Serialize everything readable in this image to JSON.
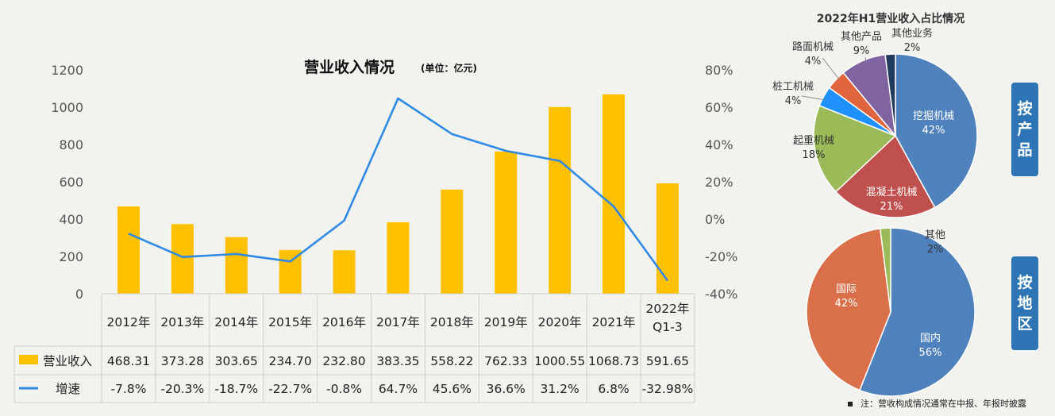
{
  "chart_data": [
    {
      "type": "bar",
      "title": "营业收入情况",
      "unit_note": "(单位：亿元)",
      "categories": [
        "2012年",
        "2013年",
        "2014年",
        "2015年",
        "2016年",
        "2017年",
        "2018年",
        "2019年",
        "2020年",
        "2021年",
        "2022年 Q1-3"
      ],
      "category_lines": [
        [
          "2012年"
        ],
        [
          "2013年"
        ],
        [
          "2014年"
        ],
        [
          "2015年"
        ],
        [
          "2016年"
        ],
        [
          "2017年"
        ],
        [
          "2018年"
        ],
        [
          "2019年"
        ],
        [
          "2020年"
        ],
        [
          "2021年"
        ],
        [
          "2022年",
          "Q1-3"
        ]
      ],
      "series": [
        {
          "name": "营业收入",
          "kind": "bar",
          "axis": "left",
          "color": "#ffc000",
          "values": [
            468.31,
            373.28,
            303.65,
            234.7,
            232.8,
            383.35,
            558.22,
            762.33,
            1000.55,
            1068.73,
            591.65
          ],
          "labels": [
            "468.31",
            "373.28",
            "303.65",
            "234.70",
            "232.80",
            "383.35",
            "558.22",
            "762.33",
            "1000.55",
            "1068.73",
            "591.65"
          ]
        },
        {
          "name": "增速",
          "kind": "line",
          "axis": "right",
          "color": "#2f8ae6",
          "values": [
            -7.8,
            -20.3,
            -18.7,
            -22.7,
            -0.8,
            64.7,
            45.6,
            36.6,
            31.2,
            6.8,
            -32.98
          ],
          "labels": [
            "-7.8%",
            "-20.3%",
            "-18.7%",
            "-22.7%",
            "-0.8%",
            "64.7%",
            "45.6%",
            "36.6%",
            "31.2%",
            "6.8%",
            "-32.98%"
          ]
        }
      ],
      "ylim": [
        0,
        1200
      ],
      "yticks": [
        0,
        200,
        400,
        600,
        800,
        1000,
        1200
      ],
      "y2lim": [
        -40,
        80
      ],
      "y2ticks": [
        "-40%",
        "-20%",
        "0%",
        "20%",
        "40%",
        "60%",
        "80%"
      ],
      "grid": false,
      "legend": "table-bottom"
    },
    {
      "type": "pie",
      "title": "2022年H1营业收入占比情况",
      "slices": [
        {
          "label": "挖掘机械",
          "pct": "42%",
          "value": 42,
          "color": "#4f81bd"
        },
        {
          "label": "混凝土机械",
          "pct": "21%",
          "value": 21,
          "color": "#c0504d"
        },
        {
          "label": "起重机械",
          "pct": "18%",
          "value": 18,
          "color": "#9bbb59"
        },
        {
          "label": "桩工机械",
          "pct": "4%",
          "value": 4,
          "color": "#1e90ff"
        },
        {
          "label": "路面机械",
          "pct": "4%",
          "value": 4,
          "color": "#e0643c"
        },
        {
          "label": "其他产品",
          "pct": "9%",
          "value": 9,
          "color": "#8064a2"
        },
        {
          "label": "其他业务",
          "pct": "2%",
          "value": 2,
          "color": "#1f3a5a"
        }
      ]
    },
    {
      "type": "pie",
      "slices": [
        {
          "label": "国内",
          "pct": "56%",
          "value": 56,
          "color": "#4f81bd"
        },
        {
          "label": "国际",
          "pct": "42%",
          "value": 42,
          "color": "#d9704a"
        },
        {
          "label": "其他",
          "pct": "2%",
          "value": 2,
          "color": "#9bbb59"
        }
      ]
    }
  ],
  "side_buttons": {
    "by_product": [
      "按",
      "产",
      "品"
    ],
    "by_region": [
      "按",
      "地",
      "区"
    ]
  },
  "footnote": "注：营收构成情况通常在中报、年报时披露"
}
